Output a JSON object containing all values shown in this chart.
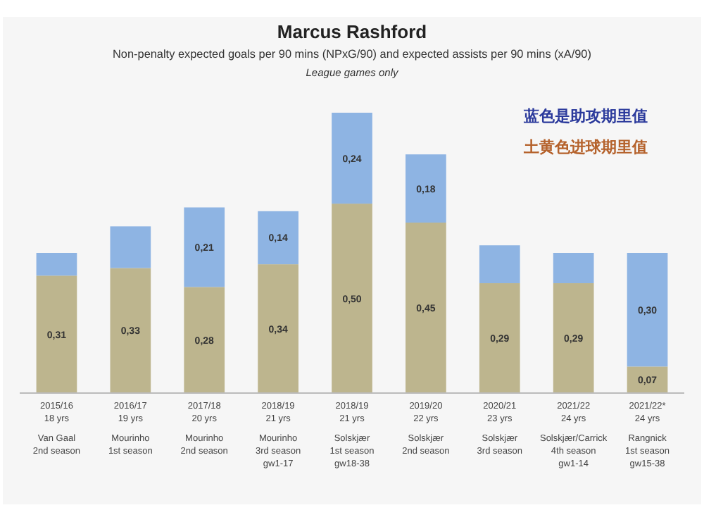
{
  "chart_data": {
    "type": "bar",
    "stacked": true,
    "title": "Marcus Rashford",
    "subtitle": "Non-penalty expected goals per 90 mins (NPxG/90) and expected assists per 90 mins (xA/90)",
    "annotations": [
      "League games only",
      "蓝色是助攻期里值",
      "土黄色进球期里值"
    ],
    "categories": [
      "2015/16\n18 yrs\n\nVan Gaal\n2nd season",
      "2016/17\n19 yrs\n\nMourinho\n1st season",
      "2017/18\n20 yrs\n\nMourinho\n2nd season",
      "2018/19\n21 yrs\n\nMourinho\n3rd season\ngw1-17",
      "2018/19\n21 yrs\n\nSolskjær\n1st season\ngw18-38",
      "2019/20\n22 yrs\n\nSolskjær\n2nd season",
      "2020/21\n23 yrs\n\nSolskjær\n3rd season",
      "2021/22\n24 yrs\n\nSolskjær/Carrick\n4th season\ngw1-14",
      "2021/22*\n24 yrs\n\nRangnick\n1st season\ngw15-38"
    ],
    "series": [
      {
        "color": "#bdb58e",
        "values": [
          0.31,
          0.33,
          0.28,
          0.34,
          0.5,
          0.45,
          0.29,
          0.29,
          0.07
        ],
        "value_labels": [
          "0,31",
          "0,33",
          "0,28",
          "0,34",
          "0,50",
          "0,45",
          "0,29",
          "0,29",
          "0,07"
        ]
      },
      {
        "color": "#8eb4e3",
        "values": [
          0.06,
          0.11,
          0.21,
          0.14,
          0.24,
          0.18,
          0.1,
          0.08,
          0.3
        ],
        "value_labels": [
          null,
          null,
          "0,21",
          "0,14",
          "0,24",
          "0,18",
          null,
          null,
          "0,30"
        ]
      }
    ]
  }
}
